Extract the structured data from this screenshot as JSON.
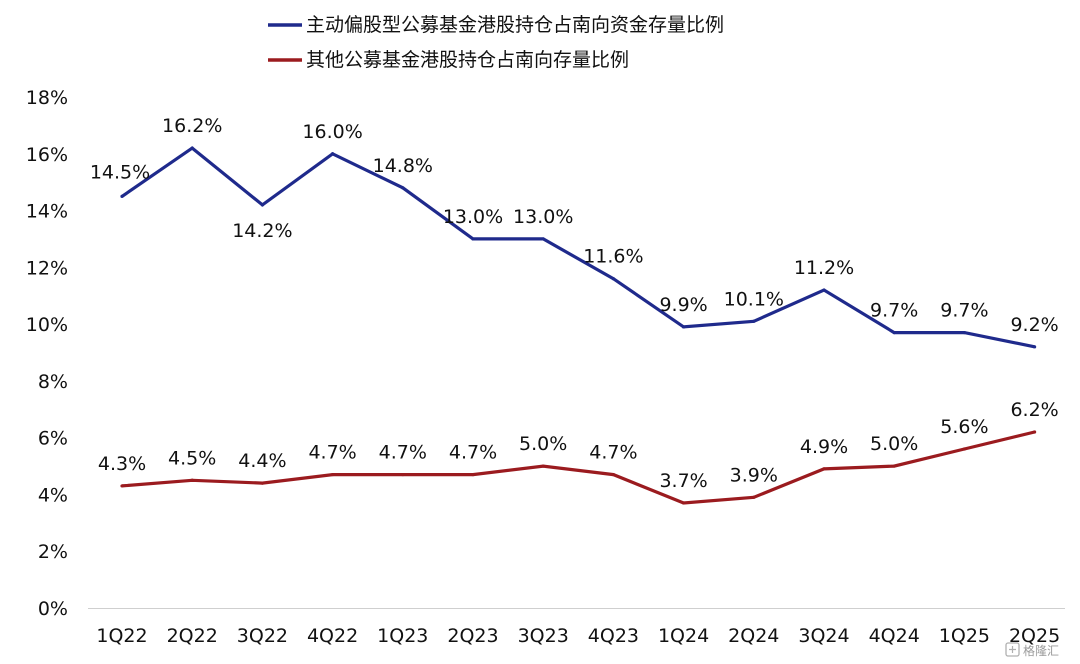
{
  "chart_data": {
    "type": "line",
    "title": "",
    "xlabel": "",
    "ylabel": "",
    "categories": [
      "1Q22",
      "2Q22",
      "3Q22",
      "4Q22",
      "1Q23",
      "2Q23",
      "3Q23",
      "4Q23",
      "1Q24",
      "2Q24",
      "3Q24",
      "4Q24",
      "1Q25",
      "2Q25"
    ],
    "ylim": [
      0,
      18
    ],
    "y_ticks": [
      0,
      2,
      4,
      6,
      8,
      10,
      12,
      14,
      16,
      18
    ],
    "y_tick_labels": [
      "0%",
      "2%",
      "4%",
      "6%",
      "8%",
      "10%",
      "12%",
      "14%",
      "16%",
      "18%"
    ],
    "grid": false,
    "legend_position": "top-left",
    "series": [
      {
        "name": "主动偏股型公募基金港股持仓占南向资金存量比例",
        "color": "#1f2a8c",
        "values": [
          14.5,
          16.2,
          14.2,
          16.0,
          14.8,
          13.0,
          13.0,
          11.6,
          9.9,
          10.1,
          11.2,
          9.7,
          9.7,
          9.2
        ],
        "labels": [
          "14.5%",
          "16.2%",
          "14.2%",
          "16.0%",
          "14.8%",
          "13.0%",
          "13.0%",
          "11.6%",
          "9.9%",
          "10.1%",
          "11.2%",
          "9.7%",
          "9.7%",
          "9.2%"
        ]
      },
      {
        "name": "其他公募基金港股持仓占南向存量比例",
        "color": "#9b1b1f",
        "values": [
          4.3,
          4.5,
          4.4,
          4.7,
          4.7,
          4.7,
          5.0,
          4.7,
          3.7,
          3.9,
          4.9,
          5.0,
          5.6,
          6.2
        ],
        "labels": [
          "4.3%",
          "4.5%",
          "4.4%",
          "4.7%",
          "4.7%",
          "4.7%",
          "5.0%",
          "4.7%",
          "3.7%",
          "3.9%",
          "4.9%",
          "5.0%",
          "5.6%",
          "6.2%"
        ]
      }
    ]
  },
  "watermark": {
    "text": "格隆汇"
  }
}
